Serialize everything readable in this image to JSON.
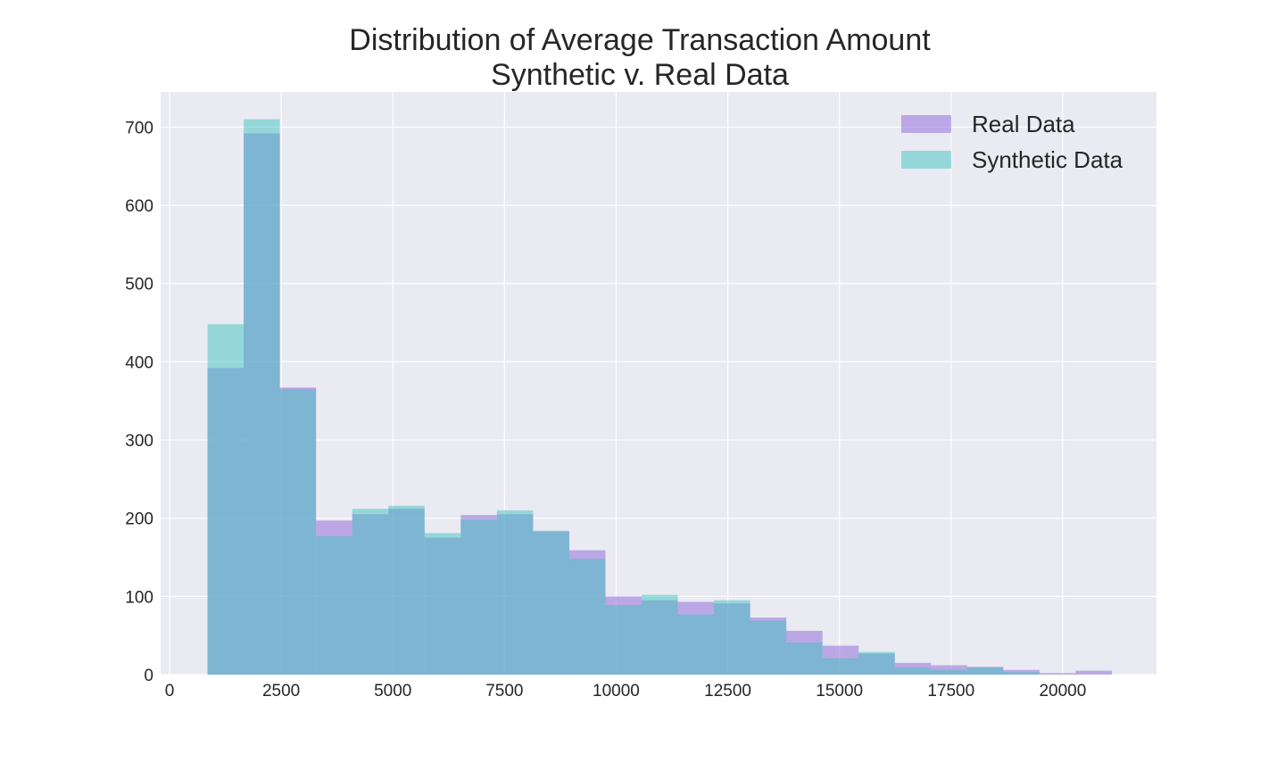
{
  "chart_data": {
    "type": "bar",
    "title_line1": "Distribution of Average Transaction Amount",
    "title_line2": "Synthetic v. Real Data",
    "xlabel": "",
    "ylabel": "",
    "xlim": [
      -200,
      22100
    ],
    "ylim": [
      0,
      745
    ],
    "x_ticks": [
      0,
      2500,
      5000,
      7500,
      10000,
      12500,
      15000,
      17500,
      20000
    ],
    "y_ticks": [
      0,
      100,
      200,
      300,
      400,
      500,
      600,
      700
    ],
    "grid": true,
    "legend_placement": "top-right",
    "colors": {
      "background": "#eaeaf2",
      "grid": "#ffffff",
      "text": "#262626"
    },
    "series": [
      {
        "name": "Real Data",
        "color": "#9370db",
        "opacity": 0.55,
        "bin_edges": [
          850,
          1660,
          2470,
          3280,
          4090,
          4900,
          5710,
          6520,
          7330,
          8140,
          8950,
          9760,
          10570,
          11380,
          12190,
          13000,
          13810,
          14620,
          15430,
          16240,
          17050,
          17860,
          18670,
          19480,
          20290,
          21100
        ],
        "counts": [
          392,
          692,
          367,
          197,
          205,
          212,
          175,
          204,
          205,
          183,
          159,
          100,
          95,
          93,
          91,
          73,
          56,
          37,
          27,
          15,
          12,
          10,
          6,
          2,
          5
        ]
      },
      {
        "name": "Synthetic Data",
        "color": "#40c4c0",
        "opacity": 0.5,
        "bin_edges": [
          850,
          1660,
          2470,
          3280,
          4090,
          4900,
          5710,
          6520,
          7330,
          8140,
          8950,
          9760,
          10570,
          11380,
          12190,
          13000,
          13810,
          14620,
          15430,
          16240,
          17050,
          17860,
          18670,
          19480,
          20290,
          21100
        ],
        "counts": [
          448,
          710,
          365,
          177,
          212,
          216,
          181,
          198,
          210,
          184,
          148,
          89,
          102,
          77,
          95,
          69,
          41,
          21,
          29,
          9,
          6,
          9,
          3,
          0,
          0
        ]
      }
    ]
  }
}
